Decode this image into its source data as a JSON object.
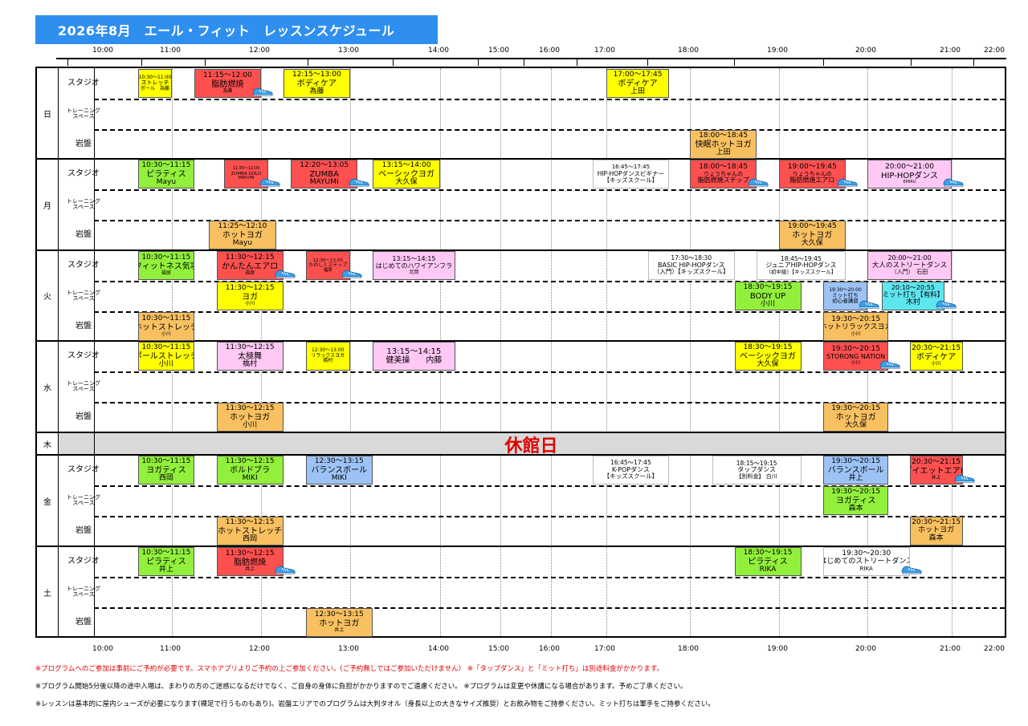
{
  "title": "2026年8月　エール・フィット　レッスンスケジュール",
  "time_labels": [
    "10:00",
    "11:00",
    "12:00",
    "13:00",
    "14:00",
    "15:00",
    "16:00",
    "17:00",
    "18:00",
    "19:00",
    "20:00",
    "21:00",
    "22:00"
  ],
  "days": [
    "日",
    "月",
    "火",
    "水",
    "木",
    "金",
    "土"
  ],
  "row_labels": {
    "studio": "スタジオ",
    "training": "トレーニング\nスペース",
    "ganban": "岩盤"
  },
  "closed_day_text": "休館日",
  "colors": {
    "yellow": "#ffff00",
    "red": "#ff5050",
    "orange": "#f8c060",
    "green": "#92f03c",
    "pink": "#ffc8f5",
    "blue": "#9dc3f6",
    "cyan": "#5ee6f0",
    "white": "#ffffff",
    "closed": "#d9d9d9",
    "title": "#2f8fef"
  },
  "lessons": [
    {
      "day": 0,
      "row": 0,
      "start": "10:30",
      "end": "11:00",
      "color": "yellow",
      "lines": [
        "10:30～11:00",
        "ストレッチ",
        "ポール　為藤"
      ],
      "sizes": [
        6,
        7,
        6
      ]
    },
    {
      "day": 0,
      "row": 0,
      "start": "11:15",
      "end": "12:00",
      "color": "red",
      "lines": [
        "11:15～12:00",
        "脂肪燃焼",
        "為藤"
      ],
      "sizes": [
        9,
        10,
        6
      ],
      "icon": "running-shoe-icon"
    },
    {
      "day": 0,
      "row": 0,
      "start": "12:15",
      "end": "13:00",
      "color": "yellow",
      "lines": [
        "12:15～13:00",
        "ボディケア",
        "為藤"
      ],
      "sizes": [
        9,
        10,
        9
      ]
    },
    {
      "day": 0,
      "row": 0,
      "start": "17:00",
      "end": "17:45",
      "color": "yellow",
      "lines": [
        "17:00～17:45",
        "ボディケア",
        "上田"
      ],
      "sizes": [
        9,
        10,
        9
      ]
    },
    {
      "day": 0,
      "row": 2,
      "start": "18:00",
      "end": "18:45",
      "color": "orange",
      "lines": [
        "18:00～18:45",
        "快眠ホットヨガ",
        "上田"
      ],
      "sizes": [
        9,
        10,
        9
      ]
    },
    {
      "day": 1,
      "row": 0,
      "start": "10:30",
      "end": "11:15",
      "color": "green",
      "lines": [
        "10:30～11:15",
        "ピラティス",
        "Mayu"
      ],
      "sizes": [
        9,
        10,
        9
      ]
    },
    {
      "day": 1,
      "row": 0,
      "start": "11:35",
      "end": "12:05",
      "color": "red",
      "lines": [
        "11:35～12:05",
        "ZUMBA GOLD",
        "MAYUMI"
      ],
      "sizes": [
        5,
        5.5,
        5
      ],
      "icon": "running-shoe-icon"
    },
    {
      "day": 1,
      "row": 0,
      "start": "12:20",
      "end": "13:05",
      "color": "red",
      "lines": [
        "12:20～13:05",
        "ZUMBA",
        "MAYUMI"
      ],
      "sizes": [
        9,
        10,
        9
      ],
      "icon": "running-shoe-icon"
    },
    {
      "day": 1,
      "row": 0,
      "start": "13:15",
      "end": "14:00",
      "color": "yellow",
      "lines": [
        "13:15～14:00",
        "ベーシックヨガ",
        "大久保"
      ],
      "sizes": [
        9,
        10,
        9
      ]
    },
    {
      "day": 1,
      "row": 0,
      "start": "16:45",
      "end": "17:45",
      "color": "white",
      "lines": [
        "16:45～17:45",
        "HIP-HOPダンスビギナー",
        "【キッズスクール】"
      ],
      "sizes": [
        7,
        7.5,
        7.5
      ]
    },
    {
      "day": 1,
      "row": 0,
      "start": "18:00",
      "end": "18:45",
      "color": "red",
      "lines": [
        "18:00～18:45",
        "りょうちゃんの",
        "脂肪燃焼ステップ"
      ],
      "sizes": [
        9,
        7,
        8
      ],
      "icon": "running-shoe-icon"
    },
    {
      "day": 1,
      "row": 0,
      "start": "19:00",
      "end": "19:45",
      "color": "red",
      "lines": [
        "19:00～19:45",
        "りょうちゃんの",
        "脂肪燃焼エアロ"
      ],
      "sizes": [
        9,
        7,
        8
      ],
      "icon": "running-shoe-icon"
    },
    {
      "day": 1,
      "row": 0,
      "start": "20:00",
      "end": "21:00",
      "color": "pink",
      "lines": [
        "20:00～21:00",
        "HIP-HOPダンス",
        "EMIRU"
      ],
      "sizes": [
        9,
        10,
        5
      ],
      "icon": "running-shoe-icon"
    },
    {
      "day": 1,
      "row": 2,
      "start": "11:25",
      "end": "12:10",
      "color": "orange",
      "lines": [
        "11:25～12:10",
        "ホットヨガ",
        "Mayu"
      ],
      "sizes": [
        9,
        10,
        9
      ]
    },
    {
      "day": 1,
      "row": 2,
      "start": "19:00",
      "end": "19:45",
      "color": "orange",
      "lines": [
        "19:00～19:45",
        "ホットヨガ",
        "大久保"
      ],
      "sizes": [
        9,
        10,
        9
      ]
    },
    {
      "day": 2,
      "row": 0,
      "start": "10:30",
      "end": "11:15",
      "color": "green",
      "lines": [
        "10:30～11:15",
        "フィットネス気功",
        "福原"
      ],
      "sizes": [
        9,
        10,
        6
      ]
    },
    {
      "day": 2,
      "row": 0,
      "start": "11:30",
      "end": "12:15",
      "color": "red",
      "lines": [
        "11:30～12:15",
        "かんたんエアロ",
        "福原"
      ],
      "sizes": [
        9,
        10,
        6
      ],
      "icon": "running-shoe-icon"
    },
    {
      "day": 2,
      "row": 0,
      "start": "12:30",
      "end": "13:00",
      "color": "red",
      "lines": [
        "12:30～13:00",
        "たのしくステップ",
        "福原"
      ],
      "sizes": [
        5.5,
        6,
        5.5
      ],
      "icon": "running-shoe-icon"
    },
    {
      "day": 2,
      "row": 0,
      "start": "13:15",
      "end": "14:15",
      "color": "pink",
      "lines": [
        "13:15～14:15",
        "はじめてのハワイアンフラ",
        "北岡"
      ],
      "sizes": [
        8,
        8,
        6
      ]
    },
    {
      "day": 2,
      "row": 0,
      "start": "17:30",
      "end": "18:30",
      "color": "white",
      "lines": [
        "17:30～18:30",
        "BASIC HIP-HOPダンス",
        "（入門）【キッズスクール】"
      ],
      "sizes": [
        7.5,
        8,
        7.5
      ]
    },
    {
      "day": 2,
      "row": 0,
      "start": "18:45",
      "end": "19:45",
      "color": "white",
      "lines": [
        "18:45～19:45",
        "ジュニアHIP-HOPダンス",
        "（初中級）【キッズスクール】"
      ],
      "sizes": [
        7.5,
        8,
        6.5
      ]
    },
    {
      "day": 2,
      "row": 0,
      "start": "20:00",
      "end": "21:00",
      "color": "pink",
      "lines": [
        "20:00～21:00",
        "大人のストリートダンス",
        "（入門）　石田"
      ],
      "sizes": [
        8,
        8.5,
        7
      ]
    },
    {
      "day": 2,
      "row": 1,
      "start": "11:30",
      "end": "12:15",
      "color": "yellow",
      "lines": [
        "11:30～12:15",
        "ヨガ",
        "小川"
      ],
      "sizes": [
        9,
        10,
        6
      ]
    },
    {
      "day": 2,
      "row": 1,
      "start": "18:30",
      "end": "19:15",
      "color": "green",
      "lines": [
        "18:30～19:15",
        "BODY UP",
        "小川"
      ],
      "sizes": [
        9,
        10,
        9
      ]
    },
    {
      "day": 2,
      "row": 1,
      "start": "19:30",
      "end": "20:00",
      "color": "blue",
      "lines": [
        "19:30～20:00",
        "ミット打ち",
        "初心者講習"
      ],
      "sizes": [
        6,
        6.5,
        6.5
      ],
      "icon": "running-shoe-icon"
    },
    {
      "day": 2,
      "row": 1,
      "start": "20:10",
      "end": "20:55",
      "color": "cyan",
      "lines": [
        "20:10～20:55",
        "ミット打ち【有料】",
        "木村"
      ],
      "sizes": [
        8,
        8.5,
        9
      ],
      "icon": "running-shoe-icon"
    },
    {
      "day": 2,
      "row": 2,
      "start": "10:30",
      "end": "11:15",
      "color": "orange",
      "lines": [
        "10:30～11:15",
        "ホットストレッチ",
        "小川"
      ],
      "sizes": [
        9,
        10,
        6
      ]
    },
    {
      "day": 2,
      "row": 2,
      "start": "19:30",
      "end": "20:15",
      "color": "orange",
      "lines": [
        "19:30～20:15",
        "ホットリラックスヨガ",
        "小川"
      ],
      "sizes": [
        9,
        9,
        6
      ]
    },
    {
      "day": 3,
      "row": 0,
      "start": "10:30",
      "end": "11:15",
      "color": "yellow",
      "lines": [
        "10:30～11:15",
        "ポールストレッチ",
        "小川"
      ],
      "sizes": [
        9,
        10,
        9
      ]
    },
    {
      "day": 3,
      "row": 0,
      "start": "11:30",
      "end": "12:15",
      "color": "pink",
      "lines": [
        "11:30～12:15",
        "太極舞",
        "橋村"
      ],
      "sizes": [
        9,
        10,
        9
      ]
    },
    {
      "day": 3,
      "row": 0,
      "start": "12:30",
      "end": "13:00",
      "color": "yellow",
      "lines": [
        "12:30～13:00",
        "リラックスヨガ",
        "橋村"
      ],
      "sizes": [
        6,
        6,
        6
      ]
    },
    {
      "day": 3,
      "row": 0,
      "start": "13:15",
      "end": "14:15",
      "color": "pink",
      "lines": [
        "13:15～14:15",
        "健美操　　内藤"
      ],
      "sizes": [
        10,
        10
      ]
    },
    {
      "day": 3,
      "row": 0,
      "start": "18:30",
      "end": "19:15",
      "color": "yellow",
      "lines": [
        "18:30～19:15",
        "ベーシックヨガ",
        "大久保"
      ],
      "sizes": [
        9,
        10,
        9
      ]
    },
    {
      "day": 3,
      "row": 0,
      "start": "19:30",
      "end": "20:15",
      "color": "red",
      "lines": [
        "19:30～20:15",
        "STORONG NATION",
        "小川"
      ],
      "sizes": [
        9,
        8,
        6
      ],
      "icon": "running-shoe-icon"
    },
    {
      "day": 3,
      "row": 0,
      "start": "20:30",
      "end": "21:15",
      "color": "yellow",
      "lines": [
        "20:30～21:15",
        "ボディケア",
        "小川"
      ],
      "sizes": [
        9,
        10,
        6
      ]
    },
    {
      "day": 3,
      "row": 2,
      "start": "11:30",
      "end": "12:15",
      "color": "orange",
      "lines": [
        "11:30～12:15",
        "ホットヨガ",
        "小川"
      ],
      "sizes": [
        9,
        10,
        9
      ]
    },
    {
      "day": 3,
      "row": 2,
      "start": "19:30",
      "end": "20:15",
      "color": "orange",
      "lines": [
        "19:30～20:15",
        "ホットヨガ",
        "大久保"
      ],
      "sizes": [
        9,
        10,
        9
      ]
    },
    {
      "day": 5,
      "row": 0,
      "start": "10:30",
      "end": "11:15",
      "color": "green",
      "lines": [
        "10:30～11:15",
        "ヨガティス",
        "西岡"
      ],
      "sizes": [
        9,
        10,
        9
      ]
    },
    {
      "day": 5,
      "row": 0,
      "start": "11:30",
      "end": "12:15",
      "color": "green",
      "lines": [
        "11:30～12:15",
        "ボルドブラ",
        "MIKI"
      ],
      "sizes": [
        9,
        10,
        9
      ]
    },
    {
      "day": 5,
      "row": 0,
      "start": "12:30",
      "end": "13:15",
      "color": "blue",
      "lines": [
        "12:30～13:15",
        "バランスボール",
        "MIKI"
      ],
      "sizes": [
        9,
        10,
        9
      ]
    },
    {
      "day": 5,
      "row": 0,
      "start": "16:45",
      "end": "17:45",
      "color": "white",
      "lines": [
        "16:45～17:45",
        "K-POPダンス",
        "【キッズスクール】"
      ],
      "sizes": [
        7.5,
        8,
        7.5
      ]
    },
    {
      "day": 5,
      "row": 0,
      "start": "18:15",
      "end": "19:15",
      "color": "white",
      "lines": [
        "18:15～19:15",
        "タップダンス",
        "【別料金】 白川"
      ],
      "sizes": [
        7.5,
        8,
        7
      ]
    },
    {
      "day": 5,
      "row": 0,
      "start": "19:30",
      "end": "20:15",
      "color": "blue",
      "lines": [
        "19:30～20:15",
        "バランスボール",
        "井上"
      ],
      "sizes": [
        9,
        10,
        9
      ]
    },
    {
      "day": 5,
      "row": 0,
      "start": "20:30",
      "end": "21:15",
      "color": "red",
      "lines": [
        "20:30～21:15",
        "ダイエットエアロ",
        "井上"
      ],
      "sizes": [
        9,
        10,
        6
      ],
      "icon": "running-shoe-icon"
    },
    {
      "day": 5,
      "row": 1,
      "start": "19:30",
      "end": "20:15",
      "color": "green",
      "lines": [
        "19:30～20:15",
        "ヨガティス",
        "森本"
      ],
      "sizes": [
        9,
        10,
        9
      ]
    },
    {
      "day": 5,
      "row": 2,
      "start": "11:30",
      "end": "12:15",
      "color": "orange",
      "lines": [
        "11:30～12:15",
        "ホットストレッチ",
        "西岡"
      ],
      "sizes": [
        9,
        10,
        9
      ]
    },
    {
      "day": 5,
      "row": 2,
      "start": "20:30",
      "end": "21:15",
      "color": "orange",
      "lines": [
        "20:30～21:15",
        "ホットヨガ",
        "森本"
      ],
      "sizes": [
        9,
        9,
        9
      ]
    },
    {
      "day": 6,
      "row": 0,
      "start": "10:30",
      "end": "11:15",
      "color": "green",
      "lines": [
        "10:30～11:15",
        "ピラティス",
        "井上"
      ],
      "sizes": [
        9,
        10,
        9
      ]
    },
    {
      "day": 6,
      "row": 0,
      "start": "11:30",
      "end": "12:15",
      "color": "red",
      "lines": [
        "11:30～12:15",
        "脂肪燃焼",
        "井上"
      ],
      "sizes": [
        9,
        10,
        6
      ],
      "icon": "running-shoe-icon"
    },
    {
      "day": 6,
      "row": 0,
      "start": "18:30",
      "end": "19:15",
      "color": "green",
      "lines": [
        "18:30～19:15",
        "ピラティス",
        "RIKA"
      ],
      "sizes": [
        9,
        10,
        9
      ]
    },
    {
      "day": 6,
      "row": 0,
      "start": "19:30",
      "end": "20:30",
      "color": "white",
      "lines": [
        "19:30～20:30",
        "はじめてのストリートダンス",
        "RIKA"
      ],
      "sizes": [
        9,
        9,
        7
      ],
      "icon": "running-shoe-icon"
    },
    {
      "day": 6,
      "row": 2,
      "start": "12:30",
      "end": "13:15",
      "color": "orange",
      "lines": [
        "12:30～13:15",
        "ホットヨガ",
        "井上"
      ],
      "sizes": [
        9,
        10,
        6
      ]
    }
  ],
  "notes": [
    "※プログラムへのご参加は事前にご予約が必要です。スマホアプリよりご予約の上ご参加ください。(ご予約無しではご参加いただけません） ※「タップダンス」と「ミット打ち」は別途料金がかかります。",
    "※プログラム開始5分後以降の途中入場は、まわりの方のご迷惑になるだけでなく、ご自身の身体に負担がかかりますのでご遠慮ください。 ※プログラムは変更や休講になる場合があります。予めご了承ください。",
    "※レッスンは基本的に屋内シューズが必要になります(裸足で行うものもあり)。岩盤エリアでのプログラムは大判タオル（身長以上の大きなサイズ推奨）とお飲み物をご持参ください。ミット打ちは軍手をご持参ください。"
  ]
}
